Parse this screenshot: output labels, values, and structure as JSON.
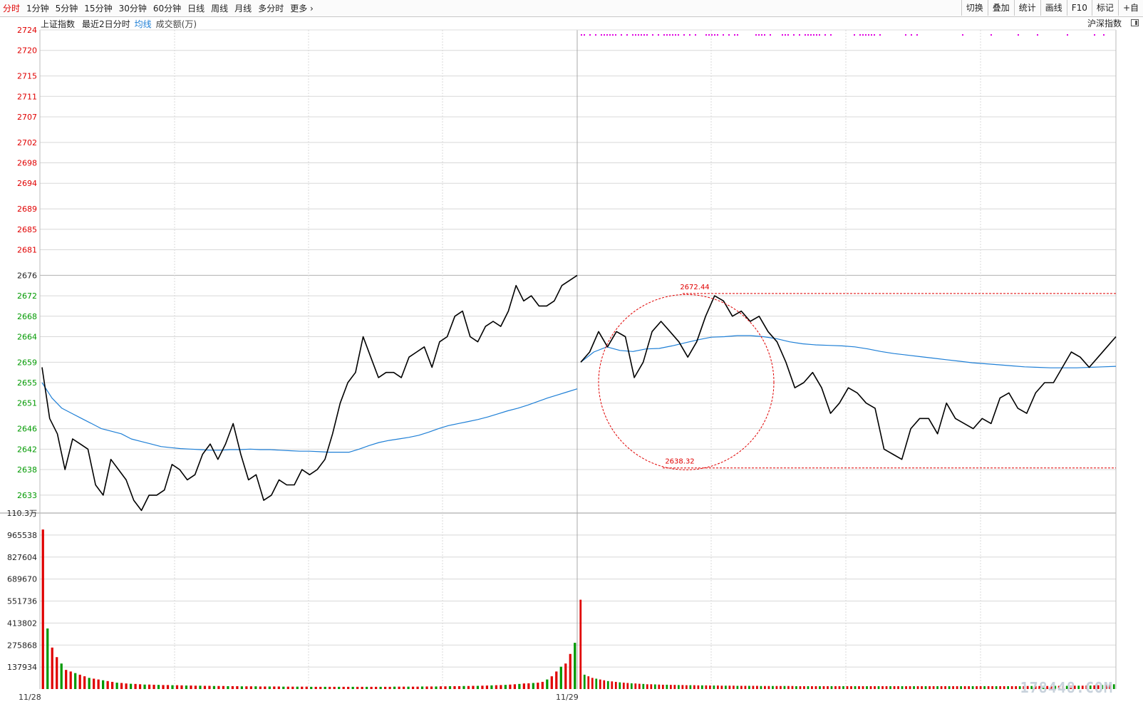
{
  "toolbar": {
    "tabs": [
      "分时",
      "1分钟",
      "5分钟",
      "15分钟",
      "30分钟",
      "60分钟",
      "日线",
      "周线",
      "月线",
      "多分时",
      "更多"
    ],
    "active_tab": 0,
    "buttons": [
      "切换",
      "叠加",
      "统计",
      "画线",
      "F10",
      "标记",
      "+自"
    ]
  },
  "info": {
    "index_name": "上证指数",
    "days_label": "最近2日分时",
    "avg_label": "均线",
    "volume_label": "成交额(万)",
    "right_label": "沪深指数"
  },
  "colors": {
    "price_line": "#000000",
    "avg_line": "#1e7fd6",
    "up": "#e00000",
    "down": "#009900",
    "annotation": "#e00000",
    "grid": "#d8d8d8",
    "marker_dots": "#e000e0"
  },
  "chart_data": {
    "type": "line",
    "price_axis": {
      "ticks": [
        2724,
        2720,
        2715,
        2711,
        2707,
        2702,
        2698,
        2694,
        2689,
        2685,
        2681,
        2676,
        2672,
        2668,
        2664,
        2659,
        2655,
        2651,
        2646,
        2642,
        2638,
        2633
      ],
      "reference": 2676,
      "range": [
        2629.5,
        2724
      ]
    },
    "volume_axis": {
      "ticks": [
        "110.3万",
        "965538",
        "827604",
        "689670",
        "551736",
        "413802",
        "275868",
        "137934"
      ],
      "range": [
        0,
        1103472
      ]
    },
    "x_labels": [
      "11/28",
      "11/29"
    ],
    "day1": {
      "price": [
        2658,
        2648,
        2645,
        2638,
        2644,
        2643,
        2642,
        2635,
        2633,
        2640,
        2638,
        2636,
        2632,
        2630,
        2633,
        2633,
        2634,
        2639,
        2638,
        2636,
        2637,
        2641,
        2643,
        2640,
        2643,
        2647,
        2641,
        2636,
        2637,
        2632,
        2633,
        2636,
        2635,
        2635,
        2638,
        2637,
        2638,
        2640,
        2645,
        2651,
        2655,
        2657,
        2664,
        2660,
        2656,
        2657,
        2657,
        2656,
        2660,
        2661,
        2662,
        2658,
        2663,
        2664,
        2668,
        2669,
        2664,
        2663,
        2666,
        2667,
        2666,
        2669,
        2674,
        2671,
        2672,
        2670,
        2670,
        2671,
        2674,
        2675,
        2676
      ],
      "avg": [
        2655,
        2652,
        2650,
        2649,
        2648,
        2647,
        2646,
        2645.5,
        2645,
        2644,
        2643.5,
        2643,
        2642.5,
        2642.3,
        2642.1,
        2642.0,
        2641.9,
        2641.8,
        2641.8,
        2641.9,
        2641.9,
        2642.0,
        2641.9,
        2641.9,
        2641.8,
        2641.7,
        2641.6,
        2641.6,
        2641.5,
        2641.4,
        2641.4,
        2641.4,
        2642.0,
        2642.7,
        2643.3,
        2643.7,
        2644.0,
        2644.3,
        2644.7,
        2645.3,
        2646.0,
        2646.6,
        2647.0,
        2647.4,
        2647.8,
        2648.3,
        2648.9,
        2649.5,
        2650.0,
        2650.6,
        2651.3,
        2652.0,
        2652.6,
        2653.2,
        2653.8
      ],
      "volume": [
        1000000,
        380000,
        260000,
        200000,
        160000,
        120000,
        110000,
        100000,
        90000,
        80000,
        70000,
        65000,
        60000,
        55000,
        50000,
        45000,
        40000,
        38000,
        35000,
        33000,
        32000,
        30000,
        28000,
        28000,
        27000,
        26000,
        25000,
        25000,
        24000,
        24000,
        23000,
        22000,
        22000,
        21000,
        21000,
        20000,
        20000,
        19000,
        19000,
        19000,
        18000,
        18000,
        18000,
        17000,
        17000,
        17000,
        17000,
        16000,
        16000,
        16000,
        16000,
        16000,
        15000,
        15000,
        15000,
        15000,
        15000,
        15000,
        14000,
        14000,
        14000,
        14000,
        14000,
        14000,
        14000,
        14000,
        14000,
        14000,
        14000,
        14000,
        14000,
        14000,
        14000,
        14000,
        14000,
        14000,
        15000,
        15000,
        15000,
        15000,
        15000,
        15000,
        16000,
        16000,
        16000,
        16000,
        17000,
        17000,
        18000,
        18000,
        18000,
        19000,
        19000,
        20000,
        20000,
        21000,
        22000,
        23000,
        24000,
        25000,
        26000,
        28000,
        30000,
        32000,
        35000,
        36000,
        38000,
        40000,
        45000,
        60000,
        80000,
        110000,
        140000,
        160000,
        220000,
        290000
      ]
    },
    "day2": {
      "price": [
        2659,
        2661,
        2665,
        2662,
        2665,
        2664,
        2656,
        2659,
        2665,
        2667,
        2665,
        2663,
        2660,
        2663,
        2668,
        2672,
        2671,
        2668,
        2669,
        2667,
        2668,
        2665,
        2663,
        2659,
        2654,
        2655,
        2657,
        2654,
        2649,
        2651,
        2654,
        2653,
        2651,
        2650,
        2642,
        2641,
        2640,
        2646,
        2648,
        2648,
        2645,
        2651,
        2648,
        2647,
        2646,
        2648,
        2647,
        2652,
        2653,
        2650,
        2649,
        2653,
        2655,
        2655,
        2658,
        2661,
        2660,
        2658,
        2660,
        2662,
        2664
      ],
      "avg": [
        2659.0,
        2661.0,
        2662.0,
        2661.3,
        2661.1,
        2661.6,
        2661.7,
        2662.2,
        2662.8,
        2663.4,
        2663.9,
        2664.0,
        2664.2,
        2664.2,
        2664.0,
        2663.6,
        2663.0,
        2662.6,
        2662.4,
        2662.3,
        2662.2,
        2662.0,
        2661.6,
        2661.1,
        2660.7,
        2660.4,
        2660.1,
        2659.8,
        2659.5,
        2659.2,
        2658.9,
        2658.7,
        2658.5,
        2658.3,
        2658.1,
        2658.0,
        2657.9,
        2657.9,
        2657.9,
        2658.0,
        2658.1,
        2658.2
      ],
      "volume": [
        560000,
        90000,
        80000,
        70000,
        65000,
        60000,
        55000,
        50000,
        48000,
        45000,
        42000,
        40000,
        38000,
        36000,
        35000,
        33000,
        32000,
        30000,
        30000,
        29000,
        28000,
        27000,
        27000,
        26000,
        26000,
        25000,
        25000,
        24000,
        24000,
        24000,
        23000,
        23000,
        23000,
        22000,
        22000,
        22000,
        21000,
        21000,
        21000,
        21000,
        20000,
        20000,
        20000,
        20000,
        20000,
        20000,
        19000,
        19000,
        19000,
        19000,
        19000,
        19000,
        19000,
        19000,
        19000,
        18000,
        18000,
        18000,
        18000,
        18000,
        18000,
        18000,
        18000,
        18000,
        18000,
        18000,
        18000,
        18000,
        18000,
        18000,
        18000,
        18000,
        18000,
        18000,
        18000,
        18000,
        18000,
        18000,
        18000,
        18000,
        18000,
        18000,
        18000,
        18000,
        18000,
        18000,
        18000,
        18000,
        18000,
        18000,
        18000,
        18000,
        18000,
        18000,
        18000,
        18000,
        18000,
        18000,
        18000,
        18000,
        18000,
        18000,
        18000,
        18000,
        18000,
        18000,
        18000,
        18000,
        18000,
        18000,
        18000,
        18000,
        18000,
        18000,
        19000,
        19000,
        19000,
        19000,
        19000,
        19000,
        19000,
        20000,
        20000,
        20000,
        20000,
        20000,
        21000,
        21000,
        21000,
        22000,
        22000,
        23000,
        24000,
        25000,
        26000,
        28000,
        30000
      ]
    },
    "annotations": {
      "high_label": "2672.44",
      "high_value": 2672.44,
      "low_label": "2638.32",
      "low_value": 2638.32
    },
    "watermark": "178448.COM"
  }
}
